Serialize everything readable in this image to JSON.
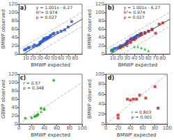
{
  "chart_data": [
    {
      "type": "scatter",
      "title": "a)",
      "xlabel": "BMWP expected",
      "ylabel": "BMWP observed",
      "annotations": [
        "y = 1.001x - 6.27",
        "R²= 0.974",
        "p = 0.027"
      ],
      "xlim": [
        0,
        90
      ],
      "ylim": [
        0,
        120
      ],
      "xticks": [
        10,
        20,
        30,
        40,
        50,
        60,
        70,
        80
      ],
      "yticks": [
        0,
        20,
        40,
        60,
        80,
        100,
        120
      ],
      "grid": false,
      "series": [
        {
          "type": "scatter",
          "marker": "square",
          "color": "#2255cc",
          "values": [
            [
              8,
              10
            ],
            [
              10,
              12
            ],
            [
              13,
              15
            ],
            [
              15,
              16
            ],
            [
              20,
              18
            ],
            [
              22,
              22
            ],
            [
              25,
              20
            ],
            [
              28,
              22
            ],
            [
              30,
              25
            ],
            [
              30,
              28
            ],
            [
              32,
              30
            ],
            [
              34,
              32
            ],
            [
              35,
              35
            ],
            [
              36,
              38
            ],
            [
              38,
              36
            ],
            [
              40,
              38
            ],
            [
              40,
              40
            ],
            [
              42,
              40
            ],
            [
              44,
              42
            ],
            [
              45,
              45
            ],
            [
              48,
              48
            ],
            [
              50,
              50
            ],
            [
              55,
              52
            ],
            [
              60,
              55
            ],
            [
              65,
              58
            ],
            [
              70,
              65
            ],
            [
              75,
              78
            ]
          ]
        },
        {
          "type": "line",
          "line_style": "solid",
          "color": "#444444",
          "values": [
            [
              7,
              0.737
            ],
            [
              90,
              83.82
            ]
          ]
        },
        {
          "type": "line",
          "line_style": "dashed",
          "color": "#bbbbbb",
          "values": [
            [
              0,
              10.73
            ],
            [
              90,
              100.82
            ]
          ]
        },
        {
          "type": "line",
          "line_style": "dashed",
          "color": "#bbbbbb",
          "values": [
            [
              24,
              0.754
            ],
            [
              90,
              66.82
            ]
          ]
        }
      ]
    },
    {
      "type": "scatter",
      "title": "b)",
      "xlabel": "BMWP expected",
      "ylabel": "BMWP observed",
      "annotations": [
        "y = 1.001x - 6.27",
        "R²= 0.974",
        "p = 0.027"
      ],
      "xlim": [
        0,
        90
      ],
      "ylim": [
        0,
        120
      ],
      "xticks": [
        10,
        20,
        30,
        40,
        50,
        60,
        70,
        80
      ],
      "yticks": [
        0,
        20,
        40,
        60,
        80,
        100,
        120
      ],
      "grid": false,
      "series": [
        {
          "type": "scatter",
          "marker": "square",
          "color": "#2255cc",
          "values": [
            [
              8,
              8
            ],
            [
              10,
              10
            ],
            [
              12,
              13
            ],
            [
              15,
              14
            ],
            [
              18,
              16
            ],
            [
              20,
              18
            ],
            [
              22,
              20
            ],
            [
              25,
              22
            ],
            [
              28,
              25
            ],
            [
              30,
              28
            ],
            [
              30,
              30
            ],
            [
              32,
              32
            ],
            [
              35,
              35
            ],
            [
              36,
              38
            ],
            [
              38,
              36
            ],
            [
              40,
              40
            ],
            [
              40,
              38
            ],
            [
              42,
              42
            ],
            [
              44,
              44
            ],
            [
              45,
              45
            ],
            [
              48,
              48
            ],
            [
              50,
              50
            ],
            [
              55,
              52
            ],
            [
              60,
              55
            ],
            [
              65,
              58
            ]
          ]
        },
        {
          "type": "scatter",
          "marker": "square",
          "color": "#cc2222",
          "values": [
            [
              20,
              15
            ],
            [
              28,
              22
            ],
            [
              35,
              28
            ],
            [
              40,
              35
            ],
            [
              42,
              38
            ],
            [
              48,
              45
            ],
            [
              50,
              48
            ],
            [
              55,
              50
            ],
            [
              60,
              55
            ],
            [
              65,
              60
            ],
            [
              70,
              50
            ],
            [
              75,
              72
            ],
            [
              80,
              75
            ],
            [
              22,
              18
            ],
            [
              30,
              25
            ],
            [
              35,
              35
            ]
          ]
        },
        {
          "type": "scatter",
          "marker": "triangle",
          "color": "#22aa22",
          "values": [
            [
              8,
              12
            ],
            [
              10,
              8
            ],
            [
              20,
              22
            ],
            [
              25,
              18
            ],
            [
              30,
              20
            ],
            [
              40,
              18
            ],
            [
              45,
              18
            ],
            [
              50,
              15
            ],
            [
              55,
              12
            ],
            [
              60,
              8
            ]
          ]
        },
        {
          "type": "line",
          "line_style": "solid",
          "color": "#444444",
          "values": [
            [
              7,
              0.737
            ],
            [
              90,
              83.82
            ]
          ]
        },
        {
          "type": "line",
          "line_style": "dashed",
          "color": "#bbbbbb",
          "values": [
            [
              0,
              10.73
            ],
            [
              90,
              100.82
            ]
          ]
        },
        {
          "type": "line",
          "line_style": "dashed",
          "color": "#bbbbbb",
          "values": [
            [
              24,
              0.754
            ],
            [
              90,
              66.82
            ]
          ]
        }
      ]
    },
    {
      "type": "scatter",
      "title": "c)",
      "xlabel": "BMWP expected",
      "ylabel": "GBWP observed",
      "annotations": [
        "r = 0.57",
        "p = 0.348"
      ],
      "xlim": [
        0,
        100
      ],
      "ylim": [
        0,
        120
      ],
      "xticks": [
        0,
        20,
        40,
        60,
        80,
        100
      ],
      "yticks": [
        0,
        20,
        40,
        60,
        80,
        100,
        120
      ],
      "grid": false,
      "series": [
        {
          "type": "scatter",
          "marker": "circle",
          "color": "#22aa22",
          "values": [
            [
              10,
              14
            ],
            [
              20,
              15
            ],
            [
              25,
              18
            ],
            [
              28,
              20
            ],
            [
              30,
              22
            ],
            [
              35,
              38
            ],
            [
              40,
              35
            ],
            [
              55,
              105
            ]
          ]
        },
        {
          "type": "scatter",
          "marker": "triangle",
          "color": "#22aa22",
          "values": [
            [
              25,
              20
            ],
            [
              28,
              22
            ],
            [
              30,
              25
            ],
            [
              35,
              30
            ],
            [
              40,
              38
            ]
          ]
        },
        {
          "type": "line",
          "line_style": "dashed",
          "color": "#bbbbbb",
          "values": [
            [
              0,
              0
            ],
            [
              100,
              100
            ]
          ]
        }
      ]
    },
    {
      "type": "scatter",
      "title": "d)",
      "xlabel": "BMWP expected",
      "ylabel": "BMWP observed",
      "annotations": [
        "r = 0.803",
        "p = 0.001"
      ],
      "xlim": [
        0,
        100
      ],
      "ylim": [
        0,
        100
      ],
      "xticks": [
        0,
        20,
        40,
        60,
        80,
        100
      ],
      "yticks": [
        0,
        20,
        40,
        60,
        80,
        100
      ],
      "grid": false,
      "series": [
        {
          "type": "scatter",
          "marker": "square",
          "color": "#cc2222",
          "values": [
            [
              20,
              18
            ],
            [
              20,
              12
            ],
            [
              35,
              50
            ],
            [
              40,
              48
            ],
            [
              45,
              50
            ],
            [
              50,
              50
            ],
            [
              55,
              58
            ],
            [
              65,
              52
            ],
            [
              80,
              75
            ],
            [
              85,
              32
            ]
          ]
        },
        {
          "type": "line",
          "line_style": "dashed",
          "color": "#bbbbbb",
          "values": [
            [
              0,
              0
            ],
            [
              100,
              100
            ]
          ]
        }
      ]
    }
  ]
}
